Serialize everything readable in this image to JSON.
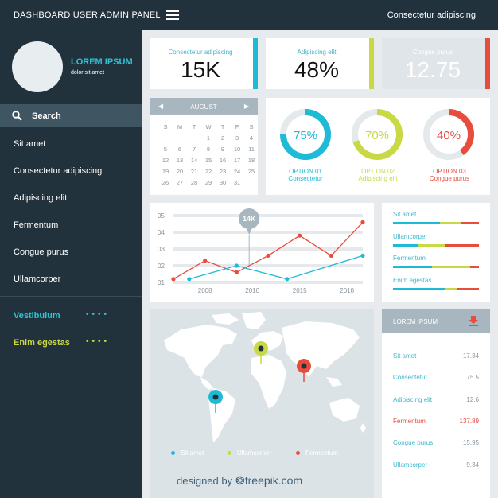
{
  "header": {
    "title": "DASHBOARD USER ADMIN PANEL",
    "right_text": "Consectetur adipiscing"
  },
  "profile": {
    "name": "LOREM IPSUM",
    "subtitle": "dolor sit amet"
  },
  "sidebar": {
    "search_label": "Search",
    "items": [
      "Sit amet",
      "Consectetur adipiscing",
      "Adipiscing elit",
      "Fermentum",
      "Congue purus",
      "Ullamcorper"
    ],
    "extras": [
      {
        "label": "Vestibulum",
        "color": "#2ec4d8"
      },
      {
        "label": "Enim egestas",
        "color": "#c8d944"
      }
    ]
  },
  "stats": [
    {
      "label": "Consectetur adipiscing",
      "value": "15K",
      "accent": "#1fbad6"
    },
    {
      "label": "Adipiscing elit",
      "value": "48%",
      "accent": "#c8d944"
    },
    {
      "label": "Congue purus",
      "value": "12.75",
      "accent": "#e84c3d"
    }
  ],
  "calendar": {
    "month": "AUGUST",
    "weekdays": [
      "S",
      "M",
      "T",
      "W",
      "T",
      "F",
      "S"
    ],
    "days": [
      "",
      "",
      "",
      "1",
      "2",
      "3",
      "4",
      "5",
      "6",
      "7",
      "8",
      "9",
      "10",
      "11",
      "12",
      "13",
      "14",
      "15",
      "16",
      "17",
      "18",
      "19",
      "20",
      "21",
      "22",
      "23",
      "24",
      "25",
      "26",
      "27",
      "28",
      "29",
      "30",
      "31",
      ""
    ]
  },
  "rings": [
    {
      "percent": "75%",
      "value": 75,
      "option": "OPTION 01",
      "caption": "Consectetur",
      "color": "#1fbad6"
    },
    {
      "percent": "70%",
      "value": 70,
      "option": "OPTION 02",
      "caption": "Adipiscing elit",
      "color": "#c8d944"
    },
    {
      "percent": "40%",
      "value": 40,
      "option": "OPTION 03",
      "caption": "Congue purus",
      "color": "#e84c3d"
    }
  ],
  "chart_data": {
    "type": "line",
    "y_ticks": [
      "05",
      "04",
      "03",
      "02",
      "01"
    ],
    "x_ticks": [
      "2008",
      "2010",
      "2015",
      "2018"
    ],
    "annotation": "14K",
    "series": [
      {
        "color": "#e84c3d",
        "points": [
          [
            0.0,
            1.2
          ],
          [
            1.0,
            2.3
          ],
          [
            2.0,
            1.6
          ],
          [
            3.0,
            2.6
          ],
          [
            4.0,
            3.8
          ],
          [
            5.0,
            2.6
          ],
          [
            6.0,
            4.6
          ]
        ]
      },
      {
        "color": "#1fbad6",
        "points": [
          [
            0.5,
            1.2
          ],
          [
            2.0,
            2.0
          ],
          [
            3.6,
            1.2
          ],
          [
            6.0,
            2.6
          ]
        ]
      }
    ]
  },
  "legend_rows": [
    {
      "label": "Sit amet",
      "parts": [
        [
          "#1fbad6",
          0.55
        ],
        [
          "#c8d944",
          0.25
        ],
        [
          "#e84c3d",
          0.2
        ]
      ]
    },
    {
      "label": "Ullamcorper",
      "parts": [
        [
          "#1fbad6",
          0.3
        ],
        [
          "#c8d944",
          0.3
        ],
        [
          "#e84c3d",
          0.4
        ]
      ]
    },
    {
      "label": "Fermentum",
      "parts": [
        [
          "#1fbad6",
          0.45
        ],
        [
          "#c8d944",
          0.45
        ],
        [
          "#e84c3d",
          0.1
        ]
      ]
    },
    {
      "label": "Enim egestas",
      "parts": [
        [
          "#1fbad6",
          0.6
        ],
        [
          "#c8d944",
          0.15
        ],
        [
          "#e84c3d",
          0.25
        ]
      ]
    }
  ],
  "table": {
    "title": "LOREM IPSUM",
    "rows": [
      {
        "label": "Sit amet",
        "value": "17.34",
        "highlight": false
      },
      {
        "label": "Consectetur",
        "value": "75.5",
        "highlight": false
      },
      {
        "label": "Adipiscing elit",
        "value": "12.6",
        "highlight": false
      },
      {
        "label": "Fermentum",
        "value": "137.89",
        "highlight": true
      },
      {
        "label": "Congue purus",
        "value": "15.95",
        "highlight": false
      },
      {
        "label": "Ullamcorper",
        "value": "9.34",
        "highlight": false
      }
    ]
  },
  "map": {
    "legend": [
      {
        "label": "Sit amet",
        "color": "#1fbad6"
      },
      {
        "label": "Ullamcorper",
        "color": "#c8d944"
      },
      {
        "label": "Fermentum",
        "color": "#e84c3d"
      }
    ]
  },
  "credit": {
    "prefix": "designed by",
    "brand": "freepik.com"
  }
}
